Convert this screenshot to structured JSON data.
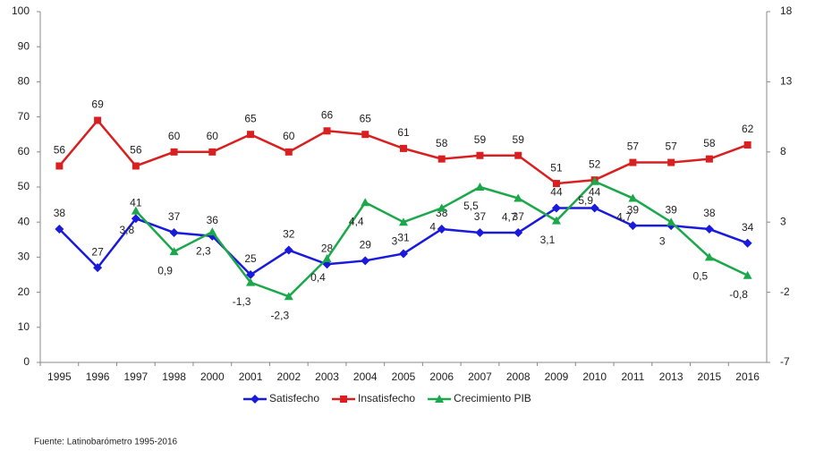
{
  "chart_data": {
    "type": "line",
    "categories": [
      "1995",
      "1996",
      "1997",
      "1998",
      "2000",
      "2001",
      "2002",
      "2003",
      "2004",
      "2005",
      "2006",
      "2007",
      "2008",
      "2009",
      "2010",
      "2011",
      "2013",
      "2015",
      "2016"
    ],
    "ylim": [
      0,
      100
    ],
    "yticks": [
      0,
      10,
      20,
      30,
      40,
      50,
      60,
      70,
      80,
      90,
      100
    ],
    "y2lim": [
      -7,
      18
    ],
    "y2ticks": [
      -7,
      -2,
      3,
      8,
      13,
      18
    ],
    "series": [
      {
        "name": "Satisfecho",
        "color": "#1a1adc",
        "marker": "diamond",
        "values": [
          38,
          27,
          41,
          37,
          36,
          25,
          32,
          28,
          29,
          31,
          38,
          37,
          37,
          44,
          44,
          39,
          39,
          38,
          34
        ]
      },
      {
        "name": "Insatisfecho",
        "color": "#d92020",
        "marker": "square",
        "values": [
          56,
          69,
          56,
          60,
          60,
          65,
          60,
          66,
          65,
          61,
          58,
          59,
          59,
          51,
          52,
          57,
          57,
          58,
          62
        ]
      },
      {
        "name": "Crecimiento PIB",
        "color": "#1aa84a",
        "marker": "triangle",
        "axis": "y2",
        "values": [
          null,
          null,
          3.8,
          0.9,
          2.3,
          -1.3,
          -2.3,
          0.4,
          4.4,
          3,
          4,
          5.5,
          4.7,
          3.1,
          5.9,
          4.7,
          3,
          0.5,
          -0.8
        ],
        "value_labels": [
          null,
          null,
          "3,8",
          "0,9",
          "2,3",
          "-1,3",
          "-2,3",
          "0,4",
          "4,4",
          "3",
          "4",
          "5,5",
          "4,7",
          "3,1",
          "5,9",
          "4,7",
          "3",
          "0,5",
          "-0,8"
        ]
      }
    ],
    "source": "Fuente: Latinobarómetro 1995-2016"
  }
}
